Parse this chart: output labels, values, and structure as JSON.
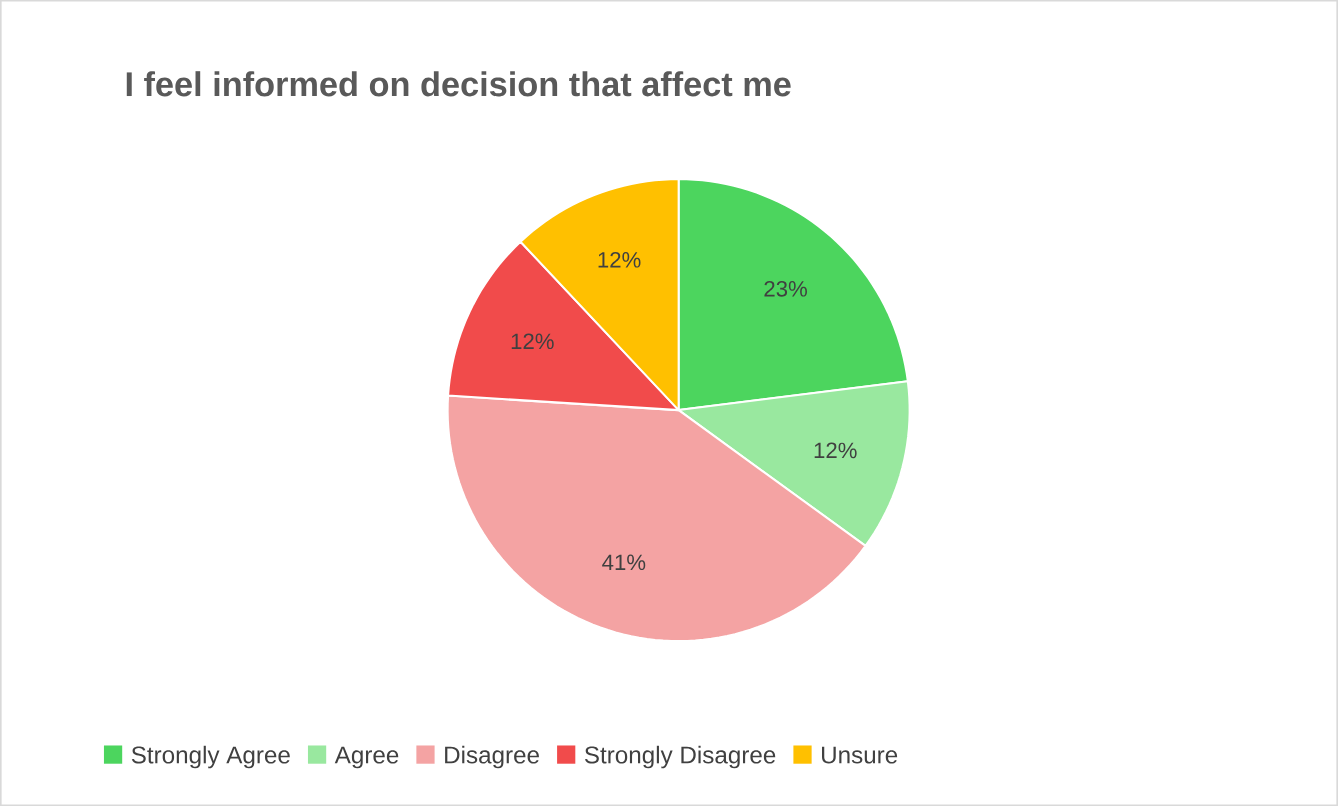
{
  "chart_data": {
    "type": "pie",
    "title": "I feel informed on decision that affect me",
    "categories": [
      "Strongly Agree",
      "Agree",
      "Disagree",
      "Strongly Disagree",
      "Unsure"
    ],
    "values": [
      23,
      12,
      41,
      12,
      12
    ],
    "value_labels": [
      "23%",
      "12%",
      "41%",
      "12%",
      "12%"
    ],
    "colors": [
      "#4cd55e",
      "#99e89f",
      "#f4a3a3",
      "#f14b4b",
      "#ffc000"
    ],
    "legend": "bottom"
  }
}
